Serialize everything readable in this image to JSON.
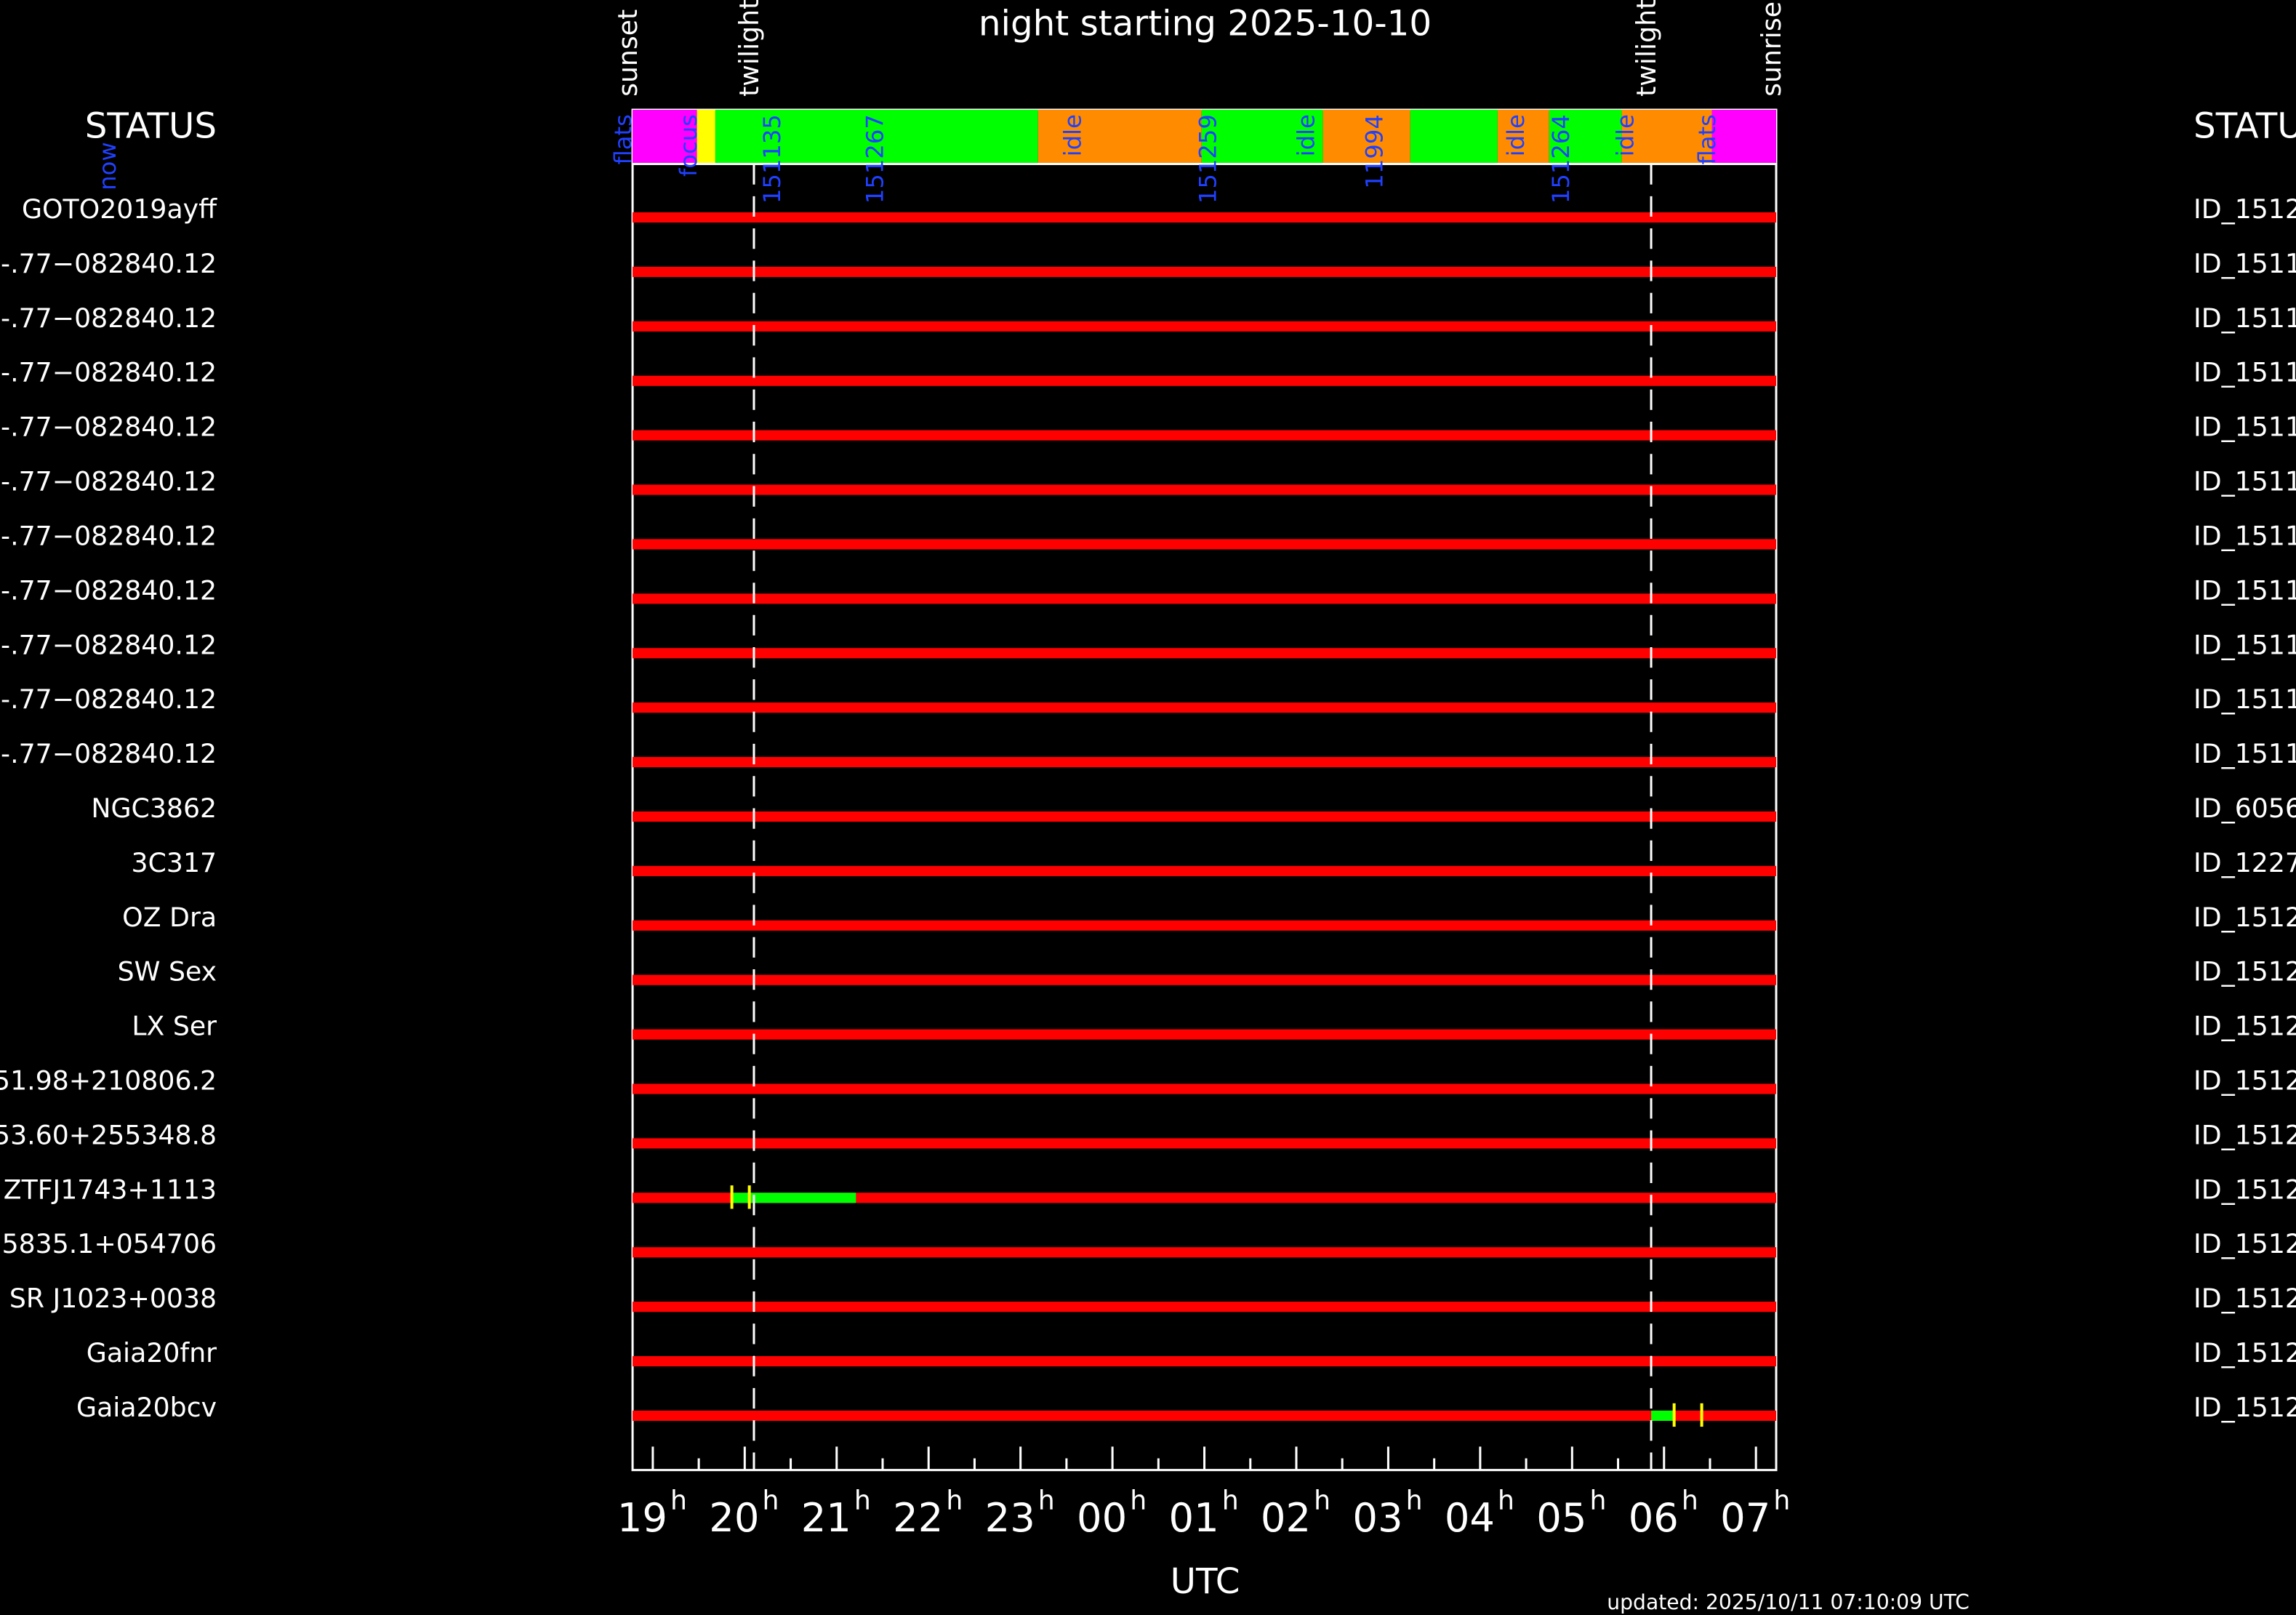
{
  "chart_data": {
    "type": "schedule",
    "title": "night starting 2025-10-10",
    "xlabel": "UTC",
    "xlim": [
      18.78,
      31.22
    ],
    "xticks": [
      {
        "value": 19,
        "label": "19"
      },
      {
        "value": 20,
        "label": "20"
      },
      {
        "value": 21,
        "label": "21"
      },
      {
        "value": 22,
        "label": "22"
      },
      {
        "value": 23,
        "label": "23"
      },
      {
        "value": 24,
        "label": "00"
      },
      {
        "value": 25,
        "label": "01"
      },
      {
        "value": 26,
        "label": "02"
      },
      {
        "value": 27,
        "label": "03"
      },
      {
        "value": 28,
        "label": "04"
      },
      {
        "value": 29,
        "label": "05"
      },
      {
        "value": 30,
        "label": "06"
      },
      {
        "value": 31,
        "label": "07"
      }
    ],
    "xtick_unit": "h",
    "xminor_ticks": [
      19.5,
      20.5,
      21.5,
      22.5,
      23.5,
      24.5,
      25.5,
      26.5,
      27.5,
      28.5,
      29.5,
      30.5
    ],
    "status_header_left": "STATUS",
    "status_header_right": "STATU",
    "now_label": "now",
    "updated": "updated: 2025/10/11 07:10:09 UTC",
    "sky_events": [
      {
        "name": "sunset",
        "time": 18.78,
        "dashed": false
      },
      {
        "name": "twilight",
        "time": 20.1,
        "dashed": true
      },
      {
        "name": "twilight",
        "time": 29.86,
        "dashed": true
      },
      {
        "name": "sunrise",
        "time": 31.22,
        "dashed": false
      }
    ],
    "status_segments": [
      {
        "start": 18.78,
        "end": 19.48,
        "color": "#ff00ff"
      },
      {
        "start": 19.48,
        "end": 19.68,
        "color": "#ffff00"
      },
      {
        "start": 19.68,
        "end": 23.19,
        "color": "#00ff00"
      },
      {
        "start": 23.19,
        "end": 24.97,
        "color": "#ff8c00"
      },
      {
        "start": 24.97,
        "end": 26.29,
        "color": "#00ff00"
      },
      {
        "start": 26.29,
        "end": 27.24,
        "color": "#ff8c00"
      },
      {
        "start": 27.24,
        "end": 28.19,
        "color": "#00ff00"
      },
      {
        "start": 28.19,
        "end": 28.75,
        "color": "#ff8c00"
      },
      {
        "start": 28.75,
        "end": 29.54,
        "color": "#00ff00"
      },
      {
        "start": 29.54,
        "end": 30.52,
        "color": "#ff8c00"
      },
      {
        "start": 30.52,
        "end": 31.22,
        "color": "#ff00ff"
      }
    ],
    "status_labels": [
      {
        "text": "flats",
        "time": 18.67
      },
      {
        "text": "focus",
        "time": 19.38
      },
      {
        "text": "151135",
        "time": 20.29
      },
      {
        "text": "151267",
        "time": 21.41
      },
      {
        "text": "idle",
        "time": 23.56
      },
      {
        "text": "151259",
        "time": 25.03
      },
      {
        "text": "idle",
        "time": 26.1
      },
      {
        "text": "11994",
        "time": 26.84
      },
      {
        "text": "idle",
        "time": 28.38
      },
      {
        "text": "151264",
        "time": 28.87
      },
      {
        "text": "idle",
        "time": 29.57
      },
      {
        "text": "flats",
        "time": 30.46
      }
    ],
    "targets": [
      {
        "name": "GOTO2019ayff",
        "id": "ID_1512",
        "windows": [],
        "marks": []
      },
      {
        "name": "-.77−082840.12",
        "id": "ID_1511",
        "windows": [],
        "marks": []
      },
      {
        "name": "-.77−082840.12",
        "id": "ID_1511",
        "windows": [],
        "marks": []
      },
      {
        "name": "-.77−082840.12",
        "id": "ID_1511",
        "windows": [],
        "marks": []
      },
      {
        "name": "-.77−082840.12",
        "id": "ID_1511",
        "windows": [],
        "marks": []
      },
      {
        "name": "-.77−082840.12",
        "id": "ID_1511",
        "windows": [],
        "marks": []
      },
      {
        "name": "-.77−082840.12",
        "id": "ID_1511",
        "windows": [],
        "marks": []
      },
      {
        "name": "-.77−082840.12",
        "id": "ID_1511",
        "windows": [],
        "marks": []
      },
      {
        "name": "-.77−082840.12",
        "id": "ID_1511",
        "windows": [],
        "marks": []
      },
      {
        "name": "-.77−082840.12",
        "id": "ID_1511",
        "windows": [],
        "marks": []
      },
      {
        "name": "-.77−082840.12",
        "id": "ID_1511",
        "windows": [],
        "marks": []
      },
      {
        "name": "NGC3862",
        "id": "ID_6056",
        "windows": [],
        "marks": []
      },
      {
        "name": "3C317",
        "id": "ID_1227",
        "windows": [],
        "marks": []
      },
      {
        "name": "OZ Dra",
        "id": "ID_1512",
        "windows": [],
        "marks": []
      },
      {
        "name": "SW Sex",
        "id": "ID_1512",
        "windows": [],
        "marks": []
      },
      {
        "name": "LX Ser",
        "id": "ID_1512",
        "windows": [],
        "marks": []
      },
      {
        "name": "51.98+210806.2",
        "id": "ID_1512",
        "windows": [],
        "marks": []
      },
      {
        "name": "53.60+255348.8",
        "id": "ID_1512",
        "windows": [],
        "marks": []
      },
      {
        "name": "ZTFJ1743+1113",
        "id": "ID_1512",
        "windows": [
          [
            19.86,
            21.21
          ]
        ],
        "marks": [
          19.86,
          20.05
        ]
      },
      {
        "name": "5835.1+054706",
        "id": "ID_1512",
        "windows": [],
        "marks": []
      },
      {
        "name": "SR J1023+0038",
        "id": "ID_1512",
        "windows": [],
        "marks": []
      },
      {
        "name": "Gaia20fnr",
        "id": "ID_1512",
        "windows": [],
        "marks": []
      },
      {
        "name": "Gaia20bcv",
        "id": "ID_1512",
        "windows": [
          [
            29.86,
            30.11
          ]
        ],
        "marks": [
          30.11,
          30.41
        ]
      }
    ]
  }
}
